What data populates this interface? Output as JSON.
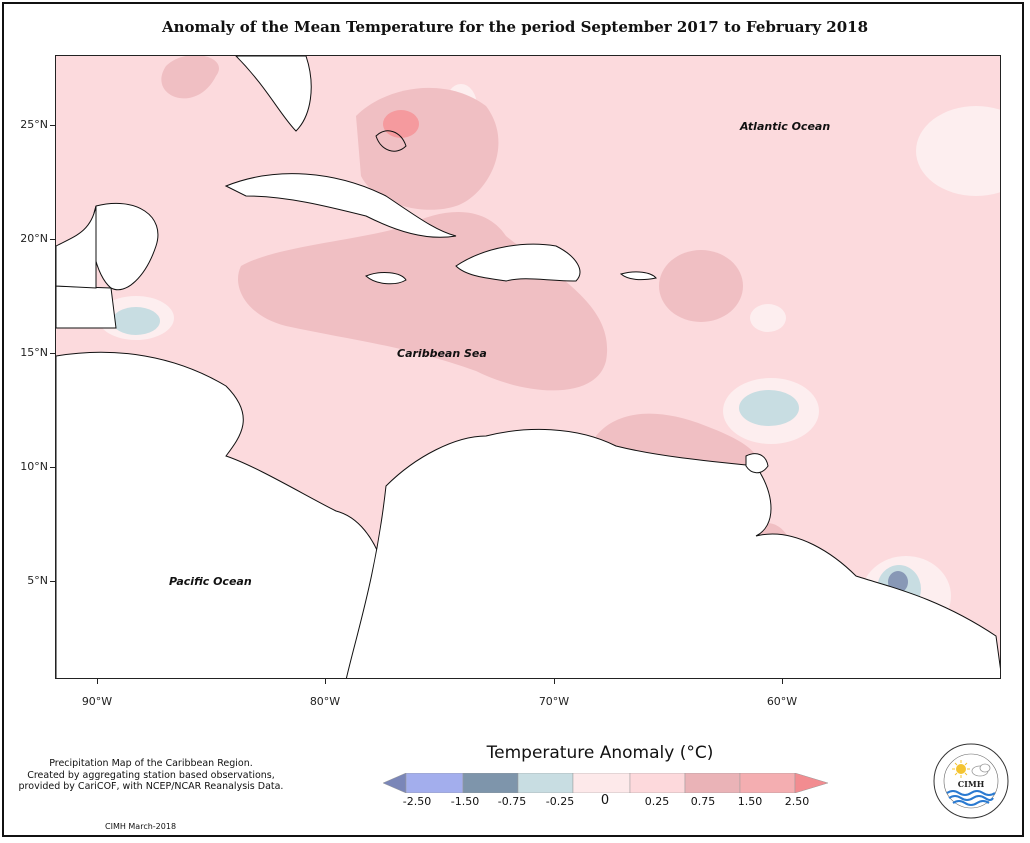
{
  "title": "Anomaly of the Mean Temperature for the period September 2017 to February 2018",
  "map": {
    "latitude_labels": [
      "25°N",
      "20°N",
      "15°N",
      "10°N",
      "5°N"
    ],
    "longitude_labels": [
      "90°W",
      "80°W",
      "70°W",
      "60°W"
    ],
    "region_labels": {
      "atlantic": "Atlantic Ocean",
      "caribbean": "Caribbean Sea",
      "pacific": "Pacific Ocean"
    }
  },
  "note": {
    "line1": "Precipitation Map of the Caribbean Region.",
    "line2": "Created by aggregating station based observations,",
    "line3": "provided by CariCOF, with NCEP/NCAR Reanalysis Data."
  },
  "credit": "CIMH March-2018",
  "legend": {
    "title": "Temperature Anomaly (°C)",
    "ticks": [
      "-2.50",
      "-1.50",
      "-0.75",
      "-0.25",
      "0",
      "0.25",
      "0.75",
      "1.50",
      "2.50"
    ],
    "colors": [
      "#7a86b8",
      "#a3aeed",
      "#7e95ab",
      "#c8dde2",
      "#fde9ea",
      "#fdd9dc",
      "#eab3b7",
      "#f28c90"
    ]
  },
  "logo": {
    "text": "CIMH",
    "ring_text_top": "Caribbean Institute for",
    "ring_text_bottom": "Meteorology and Hydrology"
  }
}
